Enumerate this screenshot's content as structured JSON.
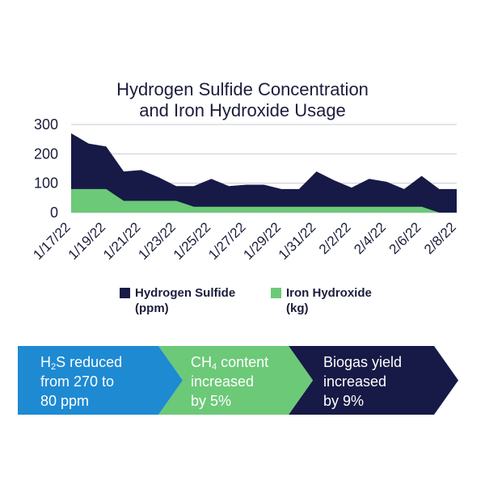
{
  "chart_data": {
    "type": "area",
    "title_lines": [
      "Hydrogen Sulfide Concentration",
      "and Iron Hydroxide Usage"
    ],
    "x": [
      "1/17/22",
      "1/18/22",
      "1/19/22",
      "1/20/22",
      "1/21/22",
      "1/22/22",
      "1/23/22",
      "1/24/22",
      "1/25/22",
      "1/26/22",
      "1/27/22",
      "1/28/22",
      "1/29/22",
      "1/30/22",
      "1/31/22",
      "2/1/22",
      "2/2/22",
      "2/3/22",
      "2/4/22",
      "2/5/22",
      "2/6/22",
      "2/7/22",
      "2/8/22"
    ],
    "x_tick_labels": [
      "1/17/22",
      "1/19/22",
      "1/21/22",
      "1/23/22",
      "1/25/22",
      "1/27/22",
      "1/29/22",
      "1/31/22",
      "2/2/22",
      "2/4/22",
      "2/6/22",
      "2/8/22"
    ],
    "y_ticks": [
      "300",
      "200",
      "100",
      "0"
    ],
    "ylim": [
      0,
      300
    ],
    "grid": true,
    "legend_position": "bottom",
    "series": [
      {
        "name_line1": "Hydrogen Sulfide",
        "name_line2": "(ppm)",
        "color": "#171a46",
        "values": [
          270,
          235,
          225,
          140,
          145,
          120,
          90,
          90,
          115,
          90,
          95,
          95,
          80,
          80,
          140,
          110,
          85,
          115,
          105,
          80,
          125,
          80,
          80
        ]
      },
      {
        "name_line1": "Iron Hydroxide",
        "name_line2": "(kg)",
        "color": "#6cc978",
        "values": [
          80,
          80,
          80,
          40,
          40,
          40,
          40,
          20,
          20,
          20,
          20,
          20,
          20,
          20,
          20,
          20,
          20,
          20,
          20,
          20,
          20,
          0,
          0
        ]
      }
    ]
  },
  "banner": {
    "steps": [
      {
        "color": "#1e8ad2",
        "pre": "H",
        "sub": "2",
        "post": "S reduced",
        "line2": "from 270 to",
        "line3": "80 ppm"
      },
      {
        "color": "#6cc978",
        "pre": "CH",
        "sub": "4",
        "post": " content",
        "line2": "increased",
        "line3": "by 5%"
      },
      {
        "color": "#171a46",
        "pre": "Biogas yield",
        "sub": "",
        "post": "",
        "line2": "increased",
        "line3": "by 9%"
      }
    ]
  }
}
